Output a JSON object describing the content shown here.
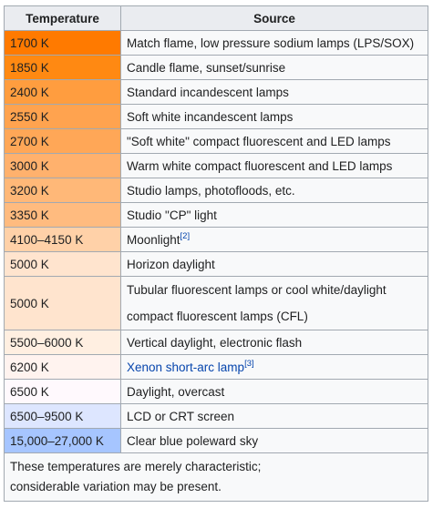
{
  "table": {
    "headers": {
      "temperature": "Temperature",
      "source": "Source"
    },
    "rows": [
      {
        "temp": "1700 K",
        "source": "Match flame, low pressure sodium lamps (LPS/SOX)",
        "ref": "",
        "color": "#ff7a00"
      },
      {
        "temp": "1850 K",
        "source": "Candle flame, sunset/sunrise",
        "ref": "",
        "color": "#ff8912"
      },
      {
        "temp": "2400 K",
        "source": "Standard incandescent lamps",
        "ref": "",
        "color": "#ff9d3f"
      },
      {
        "temp": "2550 K",
        "source": "Soft white incandescent lamps",
        "ref": "",
        "color": "#ffa34f"
      },
      {
        "temp": "2700 K",
        "source": "\"Soft white\" compact fluorescent and LED lamps",
        "ref": "",
        "color": "#ffa757"
      },
      {
        "temp": "3000 K",
        "source": "Warm white compact fluorescent and LED lamps",
        "ref": "",
        "color": "#ffb16d"
      },
      {
        "temp": "3200 K",
        "source": "Studio lamps, photofloods, etc.",
        "ref": "",
        "color": "#ffb878"
      },
      {
        "temp": "3350 K",
        "source": "Studio \"CP\" light",
        "ref": "",
        "color": "#ffbb7f"
      },
      {
        "temp": "4100–4150 K",
        "source": "Moonlight",
        "ref": "[2]",
        "color": "#ffd1a8"
      },
      {
        "temp": "5000 K",
        "source": "Horizon daylight",
        "ref": "",
        "color": "#ffe4ce"
      },
      {
        "temp": "5000 K",
        "source_lines": [
          "Tubular fluorescent lamps or cool white/daylight",
          "compact fluorescent lamps (CFL)"
        ],
        "ref": "",
        "color": "#ffe4ce",
        "tall": true
      },
      {
        "temp": "5500–6000 K",
        "source": "Vertical daylight, electronic flash",
        "ref": "",
        "color": "#ffefe1"
      },
      {
        "temp": "6200 K",
        "source": "Xenon short-arc lamp",
        "ref": "[3]",
        "color": "#fff3ef",
        "link": true
      },
      {
        "temp": "6500 K",
        "source": "Daylight, overcast",
        "ref": "",
        "color": "#fff9fd"
      },
      {
        "temp": "6500–9500 K",
        "source": "LCD or CRT screen",
        "ref": "",
        "color": "#dde6ff"
      },
      {
        "temp": "15,000–27,000 K",
        "source": "Clear blue poleward sky",
        "ref": "",
        "color": "#a6c5ff"
      }
    ],
    "note": [
      "These temperatures are merely characteristic;",
      "considerable variation may be present."
    ]
  }
}
